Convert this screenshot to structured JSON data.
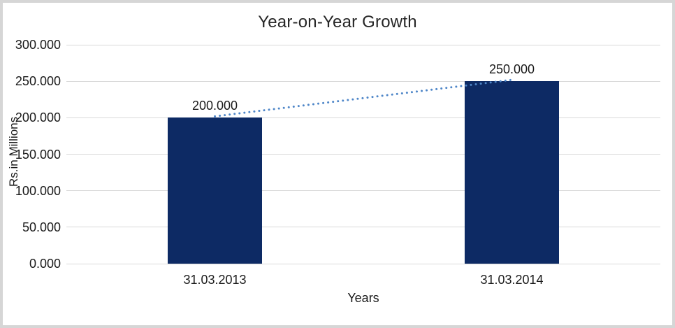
{
  "colors": {
    "bar": "#0d2a64",
    "trendline": "#4e86c8",
    "gridline": "#d9d9d9",
    "frame": "#d6d6d6",
    "text": "#1a1a1a",
    "title_text": "#262626"
  },
  "chart_data": {
    "type": "bar",
    "title": "Year-on-Year Growth",
    "xlabel": "Years",
    "ylabel": "Rs.in Millions",
    "categories": [
      "31.03.2013",
      "31.03.2014"
    ],
    "values": [
      200000,
      250000
    ],
    "data_labels": [
      "200.000",
      "250.000"
    ],
    "y_tick_labels": [
      "0.000",
      "50.000",
      "100.000",
      "150.000",
      "200.000",
      "250.000",
      "300.000"
    ],
    "ylim": [
      0,
      300000
    ],
    "y_tick_step": 50000,
    "grid": true,
    "legend": "none",
    "trendline": {
      "style": "dotted",
      "across_values": [
        200000,
        250000
      ]
    }
  }
}
